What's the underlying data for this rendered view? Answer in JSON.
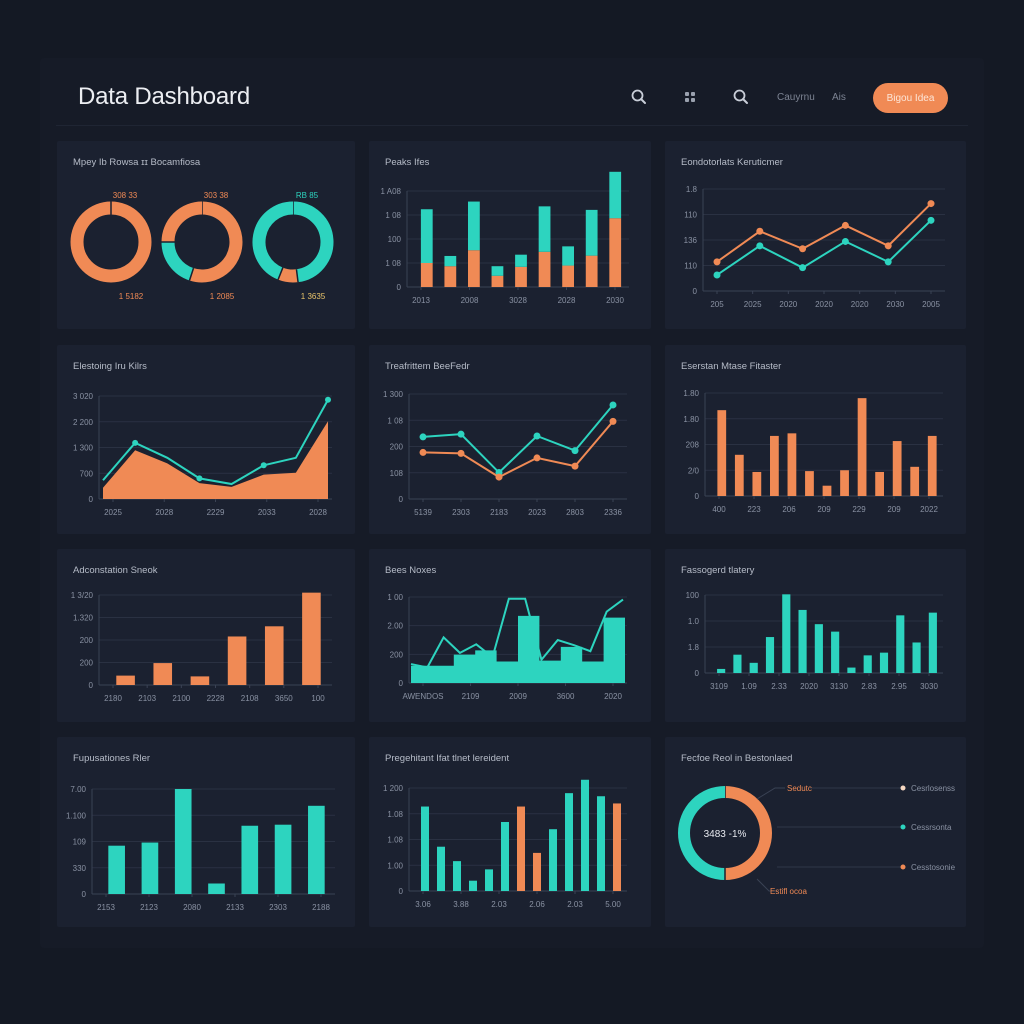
{
  "app": {
    "title": "Data Dashboard"
  },
  "header": {
    "icons": [
      {
        "name": "search-icon",
        "glyph": "search"
      },
      {
        "name": "grid-icon",
        "glyph": "grid"
      },
      {
        "name": "search-icon-2",
        "glyph": "search"
      }
    ],
    "links": [
      "Cauyrnu",
      "Ais"
    ],
    "cta_label": "Bigou Idea"
  },
  "colors": {
    "background": "#141924",
    "panel": "#1b2130",
    "orange": "#f08a55",
    "teal": "#2dd4bf",
    "grid": "#2a3142",
    "text": "#c9ced8"
  },
  "panels": [
    {
      "title": "Mpey Ib Rowsa ɪɪ Bocamfiosa"
    },
    {
      "title": "Peaks Ifes"
    },
    {
      "title": "Eondotorlats Keruticmer"
    },
    {
      "title": "Elestoing Iru Kilrs"
    },
    {
      "title": "Treafrittem BeeFedr"
    },
    {
      "title": "Eserstan Mtase Fitaster"
    },
    {
      "title": "Adconstation Sneok"
    },
    {
      "title": "Bees Noxes"
    },
    {
      "title": "Fassogerd tlatery"
    },
    {
      "title": "Fupusationes Rler"
    },
    {
      "title": "Pregehitant Ifat tlnet lereident"
    },
    {
      "title": "Fecfoe Reol in Bestonlaed"
    }
  ],
  "chart_data": [
    {
      "type": "pie",
      "title": "Mpey Ib Rowsa ɪɪ Bocamfiosa",
      "variant": "donut-trio",
      "donuts": [
        {
          "top_label": "308 33",
          "bottom_label": "1 5182",
          "slices": [
            {
              "color": "orange",
              "value": 100
            }
          ]
        },
        {
          "top_label": "303 38",
          "bottom_label": "1 2085",
          "slices": [
            {
              "color": "orange",
              "value": 55
            },
            {
              "color": "teal",
              "value": 20
            },
            {
              "color": "orange",
              "value": 25
            }
          ]
        },
        {
          "top_label": "RB 85",
          "bottom_label": "1 3635",
          "slices": [
            {
              "color": "teal",
              "value": 48
            },
            {
              "color": "orange",
              "value": 8
            },
            {
              "color": "teal",
              "value": 44
            }
          ]
        }
      ]
    },
    {
      "type": "bar",
      "title": "Peaks Ifes",
      "stacked": true,
      "yticks": [
        "0",
        "1 08",
        "100",
        "1 08",
        "1 A08"
      ],
      "xticks": [
        "2013",
        "2008",
        "3028",
        "2028",
        "2030"
      ],
      "series": [
        {
          "name": "base",
          "color": "orange",
          "values": [
            75,
            65,
            115,
            35,
            63,
            110,
            67,
            98,
            215
          ]
        },
        {
          "name": "top",
          "color": "teal",
          "values": [
            168,
            32,
            152,
            30,
            38,
            142,
            60,
            143,
            145
          ]
        }
      ],
      "ylim": [
        0,
        300
      ]
    },
    {
      "type": "line",
      "title": "Eondotorlats Keruticmer",
      "yticks": [
        "0",
        "110",
        "136",
        "110",
        "1.8"
      ],
      "xticks": [
        "205",
        "2025",
        "2020",
        "2020",
        "2020",
        "2030",
        "2005"
      ],
      "series": [
        {
          "name": "orange",
          "color": "orange",
          "values": [
            40,
            82,
            58,
            90,
            62,
            120
          ]
        },
        {
          "name": "teal",
          "color": "teal",
          "values": [
            22,
            62,
            32,
            68,
            40,
            97
          ]
        }
      ],
      "ylim": [
        0,
        140
      ]
    },
    {
      "type": "area",
      "title": "Elestoing Iru Kilrs",
      "yticks": [
        "0",
        "700",
        "1 300",
        "2 200",
        "3 020"
      ],
      "xticks": [
        "2025",
        "2028",
        "2229",
        "2033",
        "2028"
      ],
      "series": [
        {
          "name": "area",
          "color": "orange",
          "values": [
            12,
            52,
            38,
            17,
            13,
            26,
            28,
            83
          ]
        },
        {
          "name": "line",
          "color": "teal",
          "values": [
            20,
            60,
            44,
            22,
            16,
            36,
            44,
            106
          ]
        }
      ],
      "ylim": [
        0,
        110
      ]
    },
    {
      "type": "line",
      "title": "Treafrittem BeeFedr",
      "yticks": [
        "0",
        "108",
        "200",
        "1 08",
        "1 300"
      ],
      "xticks": [
        "5139",
        "2303",
        "2183",
        "2023",
        "2803",
        "2336"
      ],
      "series": [
        {
          "name": "teal",
          "color": "teal",
          "values": [
            68,
            71,
            29,
            69,
            53,
            103
          ]
        },
        {
          "name": "orange",
          "color": "orange",
          "values": [
            51,
            50,
            24,
            45,
            36,
            85
          ]
        }
      ],
      "ylim": [
        0,
        115
      ]
    },
    {
      "type": "bar",
      "title": "Eserstan Mtase Fitaster",
      "yticks": [
        "0",
        "2/0",
        "208",
        "1.80",
        "1.80"
      ],
      "xticks": [
        "400",
        "223",
        "206",
        "209",
        "229",
        "209",
        "2022"
      ],
      "series": [
        {
          "name": "values",
          "color": "orange",
          "values": [
            100,
            48,
            28,
            70,
            73,
            29,
            12,
            30,
            114,
            28,
            64,
            34,
            70
          ]
        }
      ],
      "ylim": [
        0,
        120
      ]
    },
    {
      "type": "bar",
      "title": "Adconstation Sneok",
      "yticks": [
        "0",
        "200",
        "200",
        "1.320",
        "1 3/20"
      ],
      "xticks": [
        "2180",
        "2103",
        "2100",
        "2228",
        "2108",
        "3650",
        "100"
      ],
      "series": [
        {
          "name": "values",
          "color": "orange",
          "values": [
            12,
            28,
            11,
            62,
            75,
            118
          ]
        }
      ],
      "ylim": [
        0,
        115
      ]
    },
    {
      "type": "area",
      "title": "Bees Noxes",
      "variant": "step-area-with-line",
      "yticks": [
        "0",
        "200",
        "2.00",
        "1 00"
      ],
      "xticks": [
        "AWENDOS",
        "2109",
        "2009",
        "3600",
        "2020"
      ],
      "series": [
        {
          "name": "step",
          "color": "teal",
          "values": [
            20,
            20,
            33,
            38,
            25,
            78,
            26,
            42,
            25,
            76
          ]
        },
        {
          "name": "line",
          "color": "teal",
          "values": [
            22,
            18,
            53,
            35,
            45,
            30,
            98,
            98,
            27,
            50,
            44,
            37,
            83,
            97
          ]
        }
      ],
      "ylim": [
        0,
        100
      ]
    },
    {
      "type": "bar",
      "title": "Fassogerd tlatery",
      "yticks": [
        "0",
        "1.8",
        "1.0",
        "100"
      ],
      "xticks": [
        "3109",
        "1.09",
        "2.33",
        "2020",
        "3130",
        "2.83",
        "2.95",
        "3030"
      ],
      "series": [
        {
          "name": "values",
          "color": "teal",
          "values": [
            6,
            27,
            15,
            53,
            116,
            93,
            72,
            61,
            8,
            26,
            30,
            85,
            45,
            89
          ]
        }
      ],
      "ylim": [
        0,
        115
      ]
    },
    {
      "type": "bar",
      "title": "Fupusationes Rler",
      "yticks": [
        "0",
        "330",
        "109",
        "1.100",
        "7.00"
      ],
      "xticks": [
        "2153",
        "2123",
        "2080",
        "2133",
        "2303",
        "2188"
      ],
      "series": [
        {
          "name": "values",
          "color": "teal",
          "values": [
            46,
            49,
            100,
            10,
            65,
            66,
            84
          ]
        }
      ],
      "ylim": [
        0,
        100
      ]
    },
    {
      "type": "bar",
      "title": "Pregehitant Ifat tlnet lereident",
      "yticks": [
        "0",
        "1.00",
        "1.08",
        "1.08",
        "1 200"
      ],
      "xticks": [
        "3.06",
        "3.88",
        "2.03",
        "2.06",
        "2.03",
        "5.00"
      ],
      "series": [
        {
          "name": "teal",
          "color": "teal",
          "values": [
            82,
            43,
            29,
            10,
            21,
            67,
            0,
            0,
            60,
            95,
            108,
            92,
            0
          ]
        },
        {
          "name": "orange",
          "color": "orange",
          "values": [
            0,
            0,
            0,
            0,
            0,
            0,
            82,
            37,
            0,
            0,
            0,
            0,
            85
          ]
        }
      ],
      "ylim": [
        0,
        100
      ]
    },
    {
      "type": "pie",
      "title": "Fecfoe Reol in Bestonlaed",
      "variant": "donut-with-legend",
      "center_label": "3483 -1%",
      "callouts": [
        "Sedutc",
        "Estifl ocoa"
      ],
      "legend": [
        {
          "label": "Cesrlosenss",
          "color": "#f5d7c2"
        },
        {
          "label": "Cessrsonta",
          "color": "teal"
        },
        {
          "label": "Cesstosonie",
          "color": "orange"
        }
      ],
      "slices": [
        {
          "label": "orange",
          "color": "orange",
          "value": 50
        },
        {
          "label": "teal",
          "color": "teal",
          "value": 50
        }
      ]
    }
  ]
}
